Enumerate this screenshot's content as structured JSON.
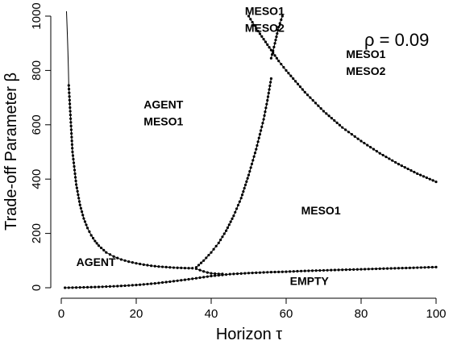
{
  "chart_data": {
    "type": "line",
    "xlabel": "Horizon  τ",
    "ylabel": "Trade-off Parameter  β",
    "xlim": [
      0,
      100
    ],
    "ylim": [
      0,
      1000
    ],
    "xticks": [
      0,
      20,
      40,
      60,
      80,
      100
    ],
    "yticks": [
      0,
      200,
      400,
      600,
      800,
      1000
    ],
    "annotation": "ρ = 0.09",
    "region_labels": [
      {
        "lines": [
          "MESO1",
          "MESO2"
        ],
        "x": 49,
        "y": 1005
      },
      {
        "lines": [
          "AGENT",
          "MESO1"
        ],
        "x": 22,
        "y": 660
      },
      {
        "lines": [
          "MESO1",
          "MESO2"
        ],
        "x": 76,
        "y": 845
      },
      {
        "lines": [
          "MESO1"
        ],
        "x": 64,
        "y": 270
      },
      {
        "lines": [
          "AGENT"
        ],
        "x": 4,
        "y": 80
      },
      {
        "lines": [
          "EMPTY"
        ],
        "x": 61,
        "y": 10
      }
    ],
    "series": [
      {
        "id": "agent-upper",
        "x": [
          2,
          3,
          4,
          5,
          6,
          7,
          8,
          9,
          10,
          12,
          14,
          16,
          18,
          20,
          22,
          24,
          26,
          28,
          30,
          32,
          34,
          35
        ],
        "y": [
          745,
          500,
          380,
          305,
          255,
          220,
          193,
          172,
          155,
          130,
          115,
          104,
          96,
          90,
          85,
          81,
          78,
          76,
          74,
          73,
          72,
          72
        ]
      },
      {
        "id": "agent-lower",
        "x": [
          36,
          37,
          38,
          39,
          40,
          41,
          42,
          43
        ],
        "y": [
          70,
          65,
          60,
          56,
          53,
          52,
          51,
          51
        ]
      },
      {
        "id": "empty-boundary",
        "x": [
          1,
          5,
          10,
          15,
          20,
          25,
          30,
          35,
          40,
          45,
          50,
          55,
          60,
          65,
          70,
          75,
          80,
          85,
          90,
          95,
          100
        ],
        "y": [
          0,
          1,
          3,
          6,
          10,
          16,
          24,
          33,
          43,
          50,
          54,
          57,
          59,
          62,
          64,
          66,
          68,
          70,
          72,
          74,
          76
        ]
      },
      {
        "id": "meso2-boundary",
        "x": [
          36,
          38,
          40,
          42,
          44,
          46,
          48,
          50,
          52,
          54,
          55,
          56
        ],
        "y": [
          75,
          100,
          130,
          165,
          210,
          265,
          330,
          415,
          510,
          620,
          690,
          770
        ]
      },
      {
        "id": "meso2-upper",
        "x": [
          50,
          52,
          54,
          56,
          58,
          60,
          65,
          70,
          75,
          80,
          85,
          90,
          95,
          100
        ],
        "y": [
          1000,
          955,
          915,
          875,
          835,
          800,
          720,
          650,
          590,
          540,
          495,
          455,
          420,
          390
        ]
      },
      {
        "id": "meso-vertical",
        "x": [
          56,
          57,
          58,
          59
        ],
        "y": [
          845,
          900,
          960,
          1000
        ]
      }
    ]
  }
}
